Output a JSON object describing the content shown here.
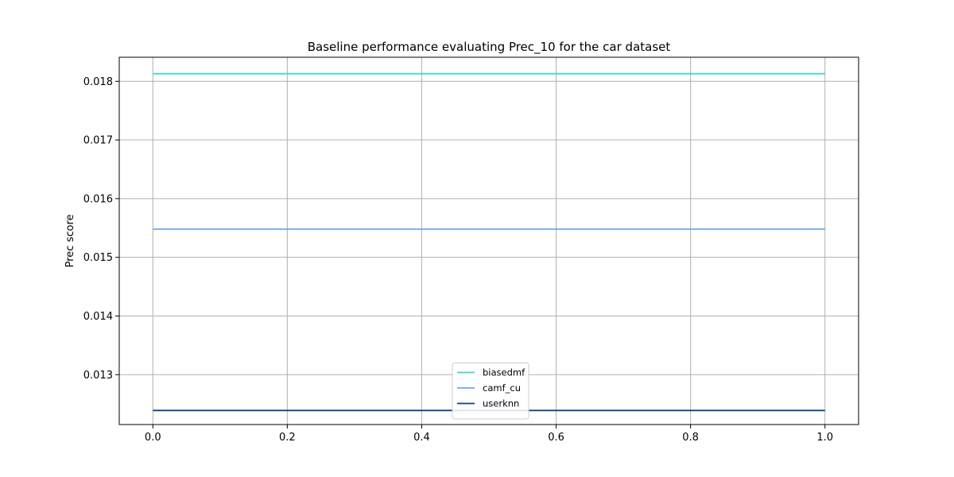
{
  "chart_data": {
    "type": "line",
    "title": "Baseline performance evaluating Prec_10 for the car dataset",
    "xlabel": "",
    "ylabel": "Prec score",
    "x": [
      0.0,
      1.0
    ],
    "xlim": [
      -0.05,
      1.05
    ],
    "ylim": [
      0.01215,
      0.01841
    ],
    "xticks": [
      0.0,
      0.2,
      0.4,
      0.6,
      0.8,
      1.0
    ],
    "xtick_labels": [
      "0.0",
      "0.2",
      "0.4",
      "0.6",
      "0.8",
      "1.0"
    ],
    "yticks": [
      0.013,
      0.014,
      0.015,
      0.016,
      0.017,
      0.018
    ],
    "ytick_labels": [
      "0.013",
      "0.014",
      "0.015",
      "0.016",
      "0.017",
      "0.018"
    ],
    "grid": true,
    "legend_position": "lower center",
    "series": [
      {
        "name": "biasedmf",
        "values": [
          0.01813,
          0.01813
        ],
        "color": "#48d1cc"
      },
      {
        "name": "camf_cu",
        "values": [
          0.01548,
          0.01548
        ],
        "color": "#6ca6e0"
      },
      {
        "name": "userknn",
        "values": [
          0.01239,
          0.01239
        ],
        "color": "#0d3f8a"
      }
    ]
  }
}
